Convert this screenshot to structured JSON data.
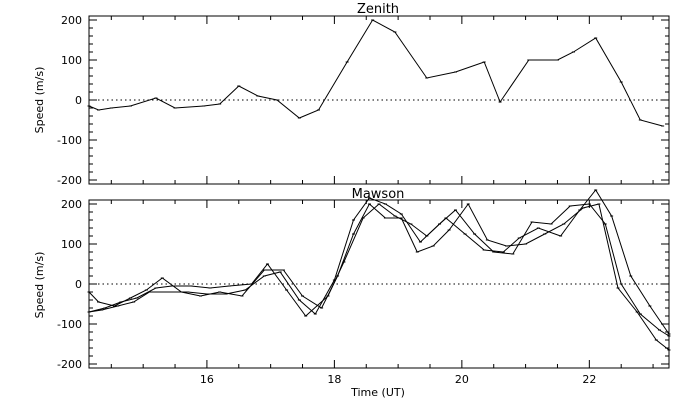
{
  "chart_data": [
    {
      "type": "line",
      "title": "Zenith",
      "xlabel": "",
      "ylabel": "Speed (m/s)",
      "xlim": [
        14.15,
        23.25
      ],
      "ylim": [
        -210,
        210
      ],
      "yticks": [
        -200,
        -100,
        0,
        100,
        200
      ],
      "ytick_labels": [
        "-200",
        "-100",
        "0",
        "100",
        "200"
      ],
      "xticks": [
        16,
        18,
        20,
        22
      ],
      "xtick_labels": [
        "",
        "",
        "",
        ""
      ],
      "zero_line": true,
      "series": [
        {
          "x": [
            14.15,
            14.3,
            14.5,
            14.8,
            15.2,
            15.5,
            15.95,
            16.2,
            16.5,
            16.8,
            17.1,
            17.45,
            17.75,
            18.2,
            18.6,
            18.95,
            19.45,
            19.9,
            20.35,
            20.6,
            21.05,
            21.5,
            21.75,
            22.1,
            22.5,
            22.8,
            23.15
          ],
          "y": [
            -15,
            -25,
            -20,
            -15,
            5,
            -20,
            -15,
            -10,
            35,
            10,
            0,
            -45,
            -25,
            95,
            200,
            170,
            55,
            70,
            95,
            -5,
            100,
            100,
            120,
            155,
            45,
            -50,
            -65
          ]
        }
      ]
    },
    {
      "type": "line",
      "title": "Mawson",
      "xlabel": "Time (UT)",
      "ylabel": "Speed (m/s)",
      "xlim": [
        14.15,
        23.25
      ],
      "ylim": [
        -210,
        210
      ],
      "yticks": [
        -200,
        -100,
        0,
        100,
        200
      ],
      "ytick_labels": [
        "-200",
        "-100",
        "0",
        "100",
        "200"
      ],
      "xticks": [
        16,
        18,
        20,
        22
      ],
      "xtick_labels": [
        "16",
        "18",
        "20",
        "22"
      ],
      "zero_line": true,
      "series": [
        {
          "x": [
            14.15,
            14.3,
            14.55,
            14.8,
            15.05,
            15.3,
            15.6,
            15.9,
            16.2,
            16.55,
            16.9,
            17.2,
            17.5,
            17.8,
            18.05,
            18.3,
            18.55,
            18.8,
            19.05,
            19.3,
            19.55,
            19.8,
            20.1,
            20.4,
            20.7,
            21.0,
            21.3,
            21.6,
            21.9,
            22.15,
            22.45,
            22.75,
            23.05,
            23.25
          ],
          "y": [
            -20,
            -45,
            -55,
            -35,
            -15,
            15,
            -20,
            -30,
            -20,
            -30,
            35,
            35,
            -30,
            -60,
            20,
            125,
            200,
            165,
            165,
            80,
            95,
            135,
            200,
            110,
            95,
            100,
            125,
            150,
            190,
            200,
            -10,
            -70,
            -140,
            -165
          ]
        },
        {
          "x": [
            14.15,
            14.35,
            14.6,
            14.85,
            15.1,
            15.35,
            15.7,
            16.0,
            16.3,
            16.6,
            16.9,
            17.15,
            17.45,
            17.7,
            18.0,
            18.3,
            18.55,
            18.8,
            19.05,
            19.35,
            19.65,
            19.9,
            20.2,
            20.5,
            20.8,
            21.1,
            21.4,
            21.7,
            22.0,
            22.25,
            22.5,
            22.8,
            23.1,
            23.25
          ],
          "y": [
            -70,
            -65,
            -55,
            -45,
            -20,
            -20,
            -20,
            -25,
            -25,
            -15,
            20,
            30,
            -40,
            -75,
            10,
            160,
            215,
            200,
            175,
            105,
            150,
            185,
            125,
            80,
            75,
            155,
            150,
            195,
            200,
            150,
            0,
            -75,
            -115,
            -130
          ]
        },
        {
          "x": [
            14.15,
            14.4,
            14.65,
            14.9,
            15.2,
            15.45,
            15.75,
            16.05,
            16.35,
            16.7,
            16.95,
            17.25,
            17.55,
            17.9,
            18.15,
            18.45,
            18.7,
            18.95,
            19.2,
            19.45,
            19.75,
            20.05,
            20.35,
            20.65,
            20.9,
            21.2,
            21.55,
            21.85,
            22.1,
            22.35,
            22.65,
            22.95,
            23.25
          ],
          "y": [
            -70,
            -60,
            -45,
            -35,
            -10,
            -5,
            -5,
            -10,
            -5,
            0,
            50,
            -15,
            -80,
            -30,
            55,
            165,
            200,
            170,
            150,
            120,
            165,
            125,
            85,
            80,
            115,
            140,
            120,
            185,
            235,
            170,
            20,
            -55,
            -125
          ]
        }
      ]
    }
  ]
}
